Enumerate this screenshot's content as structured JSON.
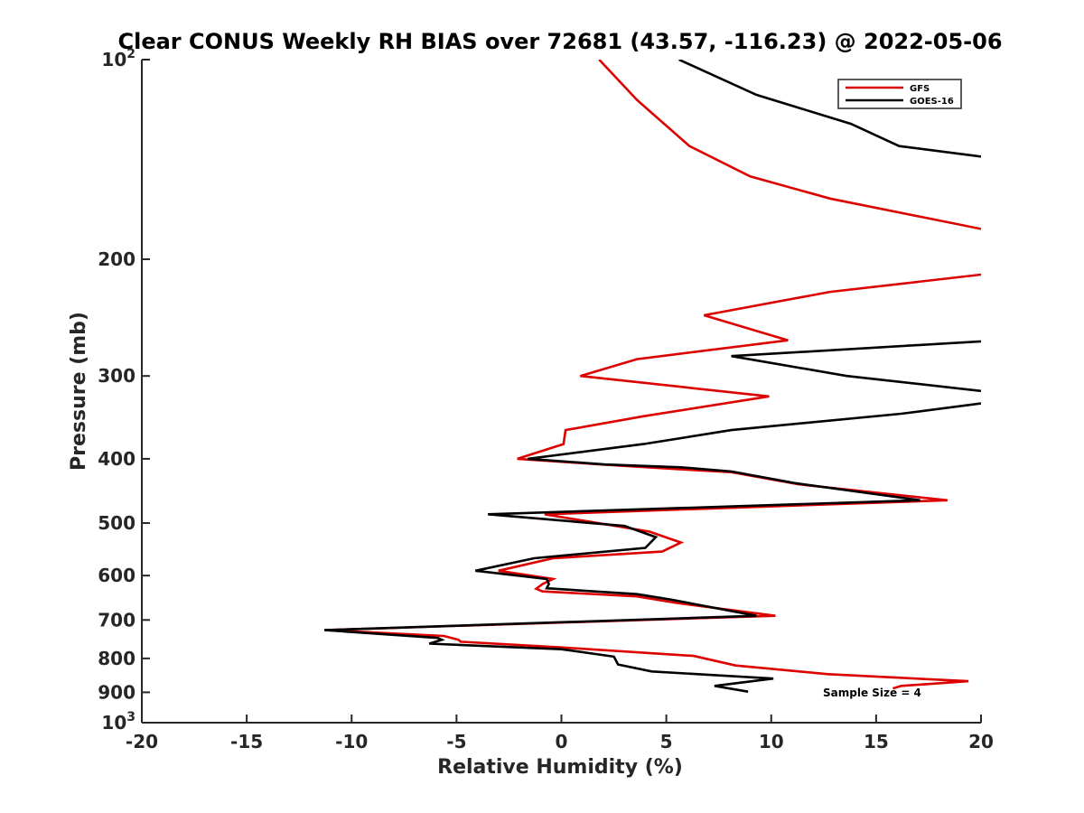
{
  "chart_data": {
    "type": "line",
    "title": "Clear CONUS Weekly RH BIAS over 72681 (43.57, -116.23) @ 2022-05-06",
    "xlabel": "Relative Humidity (%)",
    "ylabel": "Pressure (mb)",
    "xlim": [
      -20,
      20
    ],
    "ylim": [
      100,
      1000
    ],
    "y_scale": "log",
    "y_reversed": true,
    "grid": false,
    "legend_position": "top-right",
    "x_ticks": [
      -20,
      -15,
      -10,
      -5,
      0,
      5,
      10,
      15,
      20
    ],
    "x_tick_labels": [
      "-20",
      "-15",
      "-10",
      "-5",
      "0",
      "5",
      "10",
      "15",
      "20"
    ],
    "y_ticks": [
      {
        "value": 100,
        "base": "10",
        "exp": "2"
      },
      {
        "value": 200,
        "base": "200",
        "exp": ""
      },
      {
        "value": 300,
        "base": "300",
        "exp": ""
      },
      {
        "value": 400,
        "base": "400",
        "exp": ""
      },
      {
        "value": 500,
        "base": "500",
        "exp": ""
      },
      {
        "value": 600,
        "base": "600",
        "exp": ""
      },
      {
        "value": 700,
        "base": "700",
        "exp": ""
      },
      {
        "value": 800,
        "base": "800",
        "exp": ""
      },
      {
        "value": 900,
        "base": "900",
        "exp": ""
      },
      {
        "value": 1000,
        "base": "10",
        "exp": "3"
      }
    ],
    "annotation": "Sample Size = 4",
    "series": [
      {
        "name": "GFS",
        "color": "#dd0000",
        "segments": [
          [
            [
              1.8,
              100
            ],
            [
              3.6,
              115
            ],
            [
              6.1,
              135
            ],
            [
              9.0,
              150
            ],
            [
              12.8,
              162
            ],
            [
              20,
              180
            ]
          ],
          [
            [
              20,
              211
            ],
            [
              12.8,
              224
            ],
            [
              6.8,
              243
            ],
            [
              10.8,
              265
            ],
            [
              3.6,
              283
            ],
            [
              0.9,
              300
            ],
            [
              9.9,
              322
            ],
            [
              3.9,
              345
            ],
            [
              0.2,
              362
            ],
            [
              0.1,
              380
            ],
            [
              -2.1,
              400
            ],
            [
              1.9,
              408
            ],
            [
              5.7,
              415
            ],
            [
              8.1,
              419
            ],
            [
              11.3,
              437
            ],
            [
              18.4,
              462
            ],
            [
              -0.8,
              485
            ],
            [
              4.2,
              515
            ],
            [
              5.7,
              535
            ],
            [
              4.8,
              552
            ],
            [
              -0.4,
              565
            ],
            [
              -3.0,
              590
            ],
            [
              -0.4,
              607
            ],
            [
              -0.9,
              618
            ],
            [
              -1.2,
              628
            ],
            [
              -0.9,
              634
            ],
            [
              3.6,
              645
            ],
            [
              5.5,
              660
            ],
            [
              10.2,
              690
            ],
            [
              -11.3,
              725
            ],
            [
              -5.6,
              740
            ],
            [
              -4.9,
              750
            ],
            [
              -4.8,
              755
            ],
            [
              0.0,
              770
            ],
            [
              6.3,
              793
            ],
            [
              8.3,
              820
            ],
            [
              12.7,
              845
            ],
            [
              19.4,
              866
            ],
            [
              16.2,
              880
            ],
            [
              15.8,
              888
            ]
          ]
        ]
      },
      {
        "name": "GOES-16",
        "color": "#000000",
        "segments": [
          [
            [
              5.6,
              100
            ],
            [
              9.3,
              113
            ],
            [
              13.8,
              125
            ],
            [
              16.1,
              135
            ],
            [
              20,
              140
            ]
          ],
          [
            [
              20,
              266
            ],
            [
              8.1,
              280
            ],
            [
              13.6,
              300
            ],
            [
              20,
              316
            ]
          ],
          [
            [
              20,
              330
            ],
            [
              16.2,
              342
            ],
            [
              8.1,
              362
            ],
            [
              3.9,
              380
            ],
            [
              -1.6,
              400
            ],
            [
              2.1,
              408
            ],
            [
              5.7,
              412
            ],
            [
              8.1,
              418
            ],
            [
              11.1,
              435
            ],
            [
              17.1,
              462
            ],
            [
              -3.5,
              485
            ],
            [
              3.0,
              505
            ],
            [
              4.5,
              525
            ],
            [
              4.0,
              545
            ],
            [
              -1.3,
              565
            ],
            [
              -4.1,
              590
            ],
            [
              -0.7,
              607
            ],
            [
              -0.6,
              618
            ],
            [
              -0.7,
              627
            ],
            [
              3.6,
              640
            ],
            [
              5.2,
              652
            ],
            [
              9.3,
              690
            ],
            [
              -11.3,
              725
            ],
            [
              -5.9,
              745
            ],
            [
              -5.7,
              750
            ],
            [
              -6.3,
              760
            ],
            [
              0.0,
              775
            ],
            [
              2.5,
              795
            ],
            [
              2.7,
              817
            ],
            [
              4.3,
              837
            ],
            [
              10.1,
              858
            ],
            [
              7.3,
              880
            ],
            [
              8.9,
              898
            ]
          ]
        ]
      }
    ]
  }
}
